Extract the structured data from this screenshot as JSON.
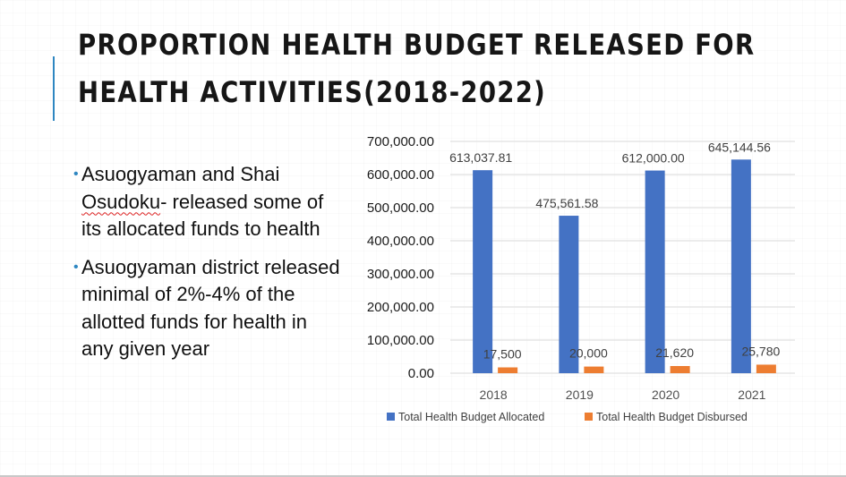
{
  "slide": {
    "title_line1": "PROPORTION HEALTH BUDGET RELEASED FOR",
    "title_line2": "HEALTH ACTIVITIES(2018-2022)",
    "bullets": [
      {
        "parts": [
          "Asuogyaman and Shai ",
          "Osudoku",
          "- released some of its allocated funds to health"
        ],
        "text": "Asuogyaman and Shai Osudoku- released some of its allocated funds to health"
      },
      {
        "parts": [
          "Asuogyaman district released minimal of 2%-4% of the allotted funds  for health in any given year"
        ],
        "text": "Asuogyaman district released minimal of 2%-4% of the allotted funds  for health in any given year"
      }
    ]
  },
  "colors": {
    "accent": "#2e86c1",
    "allocated": "#4472c4",
    "disbursed": "#ed7d31",
    "gridline": "#d9d9d9"
  },
  "chart_data": {
    "type": "bar",
    "title": "",
    "xlabel": "",
    "ylabel": "",
    "categories": [
      "2018",
      "2019",
      "2020",
      "2021"
    ],
    "ylim": [
      0,
      700000
    ],
    "yticks": [
      0,
      100000,
      200000,
      300000,
      400000,
      500000,
      600000,
      700000
    ],
    "ytick_labels": [
      "0.00",
      "100,000.00",
      "200,000.00",
      "300,000.00",
      "400,000.00",
      "500,000.00",
      "600,000.00",
      "700,000.00"
    ],
    "grid": true,
    "legend_position": "bottom",
    "series": [
      {
        "name": "Total Health Budget Allocated",
        "color": "#4472c4",
        "values": [
          613037.81,
          475561.58,
          612000.0,
          645144.56
        ],
        "labels": [
          "613,037.81",
          "475,561.58",
          "612,000.00",
          "645,144.56"
        ]
      },
      {
        "name": "Total Health Budget Disbursed",
        "color": "#ed7d31",
        "values": [
          17500,
          20000,
          21620,
          25780
        ],
        "labels": [
          "17,500",
          "20,000",
          "21,620",
          "25,780"
        ]
      }
    ]
  }
}
